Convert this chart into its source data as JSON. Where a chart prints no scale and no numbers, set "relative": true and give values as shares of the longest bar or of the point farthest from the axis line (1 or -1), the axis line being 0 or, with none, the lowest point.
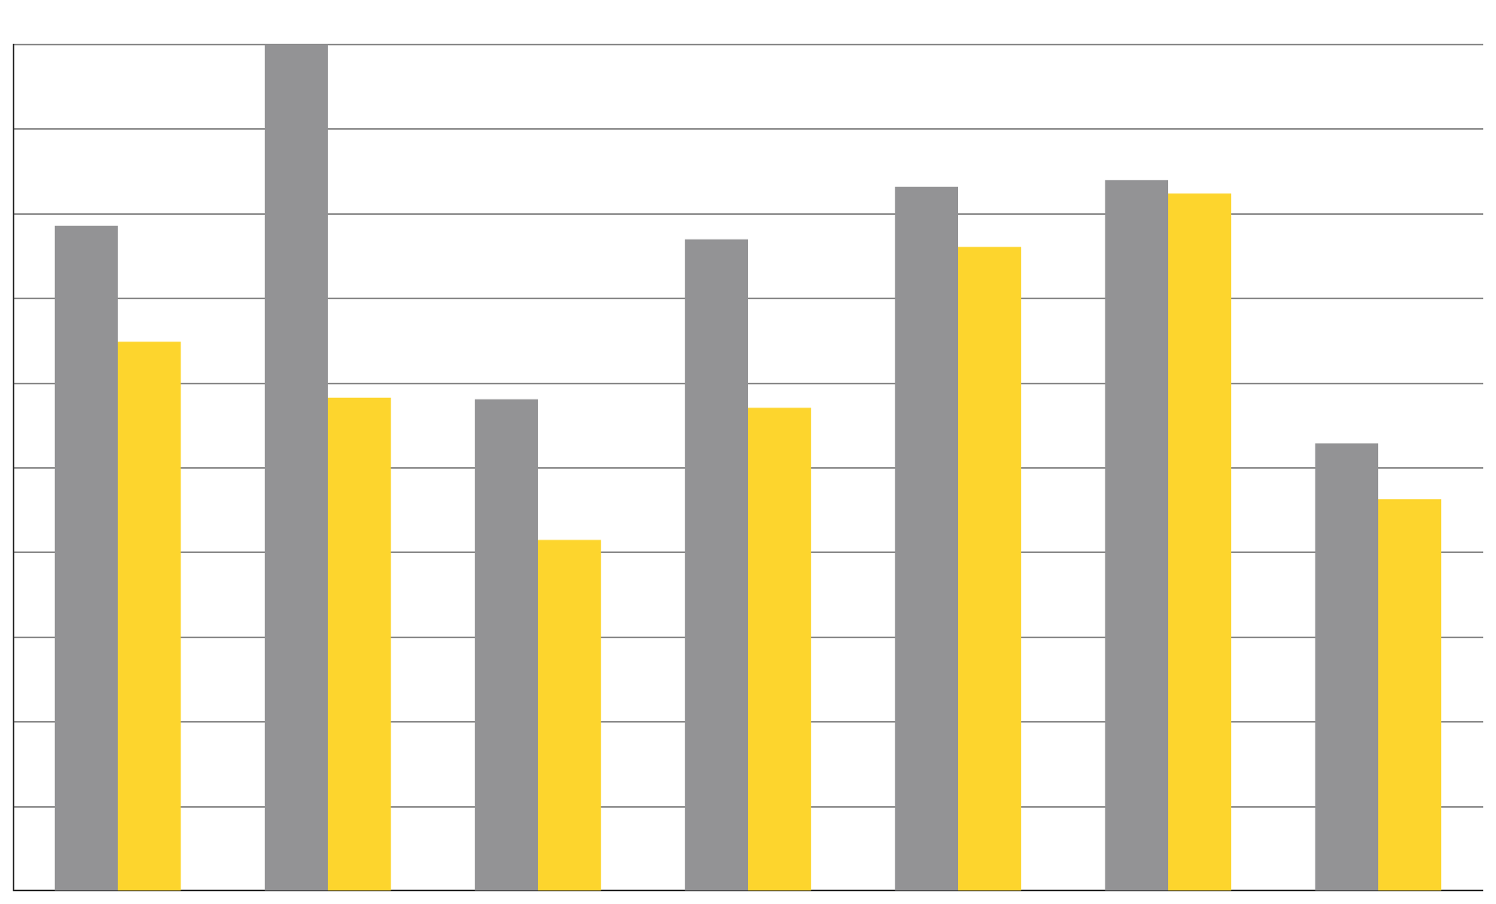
{
  "chart_data": {
    "type": "bar",
    "relative": true,
    "grid": "y",
    "categories": [
      null,
      null,
      null,
      null,
      null,
      null,
      null
    ],
    "series": [
      {
        "color": "#939395",
        "values": [
          0.786,
          1,
          0.581,
          0.77,
          0.832,
          0.84,
          0.529
        ]
      },
      {
        "color": "#fdd52d",
        "values": [
          0.649,
          0.583,
          0.415,
          0.571,
          0.761,
          0.824,
          0.463
        ]
      }
    ]
  }
}
